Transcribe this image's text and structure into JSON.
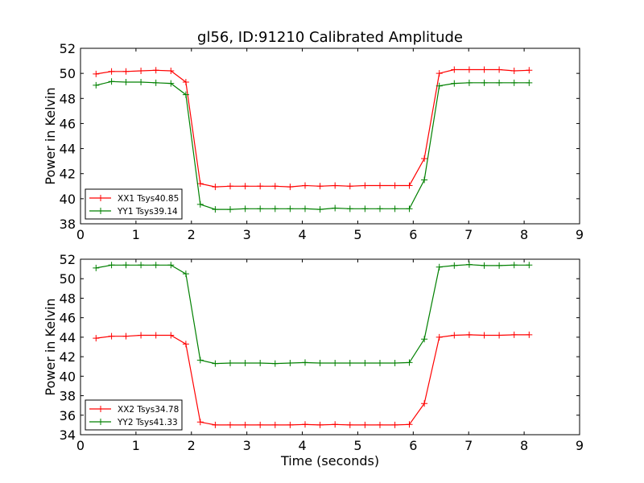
{
  "figure": {
    "title": "gl56, ID:91210 Calibrated Amplitude"
  },
  "chart_data": [
    {
      "type": "line",
      "ylabel": "Power in Kelvin",
      "xlabel": "",
      "xlim": [
        0,
        9
      ],
      "ylim": [
        38,
        52
      ],
      "xticks": [
        0,
        1,
        2,
        3,
        4,
        5,
        6,
        7,
        8,
        9
      ],
      "yticks": [
        38,
        40,
        42,
        44,
        46,
        48,
        50,
        52
      ],
      "legend_position": "lower-left",
      "grid": false,
      "x": [
        0.28,
        0.56,
        0.82,
        1.09,
        1.36,
        1.63,
        1.9,
        2.16,
        2.43,
        2.7,
        2.97,
        3.24,
        3.51,
        3.78,
        4.05,
        4.32,
        4.59,
        4.86,
        5.13,
        5.4,
        5.67,
        5.93,
        6.2,
        6.47,
        6.74,
        7.01,
        7.28,
        7.55,
        7.82,
        8.09
      ],
      "series": [
        {
          "name": "XX1 Tsys40.85",
          "color": "#ff0000",
          "values": [
            49.95,
            50.15,
            50.15,
            50.2,
            50.25,
            50.2,
            49.3,
            41.2,
            40.95,
            41.0,
            41.0,
            41.0,
            41.0,
            40.95,
            41.05,
            41.0,
            41.05,
            41.0,
            41.05,
            41.05,
            41.05,
            41.05,
            43.2,
            50.0,
            50.3,
            50.3,
            50.3,
            50.3,
            50.2,
            50.25
          ]
        },
        {
          "name": "YY1 Tsys39.14",
          "color": "#008000",
          "values": [
            49.05,
            49.35,
            49.3,
            49.3,
            49.25,
            49.2,
            48.3,
            39.55,
            39.15,
            39.15,
            39.2,
            39.2,
            39.2,
            39.2,
            39.2,
            39.15,
            39.25,
            39.2,
            39.2,
            39.2,
            39.2,
            39.2,
            41.5,
            49.0,
            49.2,
            49.25,
            49.25,
            49.25,
            49.25,
            49.25
          ]
        }
      ]
    },
    {
      "type": "line",
      "ylabel": "Power in Kelvin",
      "xlabel": "Time (seconds)",
      "xlim": [
        0,
        9
      ],
      "ylim": [
        34,
        52
      ],
      "xticks": [
        0,
        1,
        2,
        3,
        4,
        5,
        6,
        7,
        8,
        9
      ],
      "yticks": [
        34,
        36,
        38,
        40,
        42,
        44,
        46,
        48,
        50,
        52
      ],
      "legend_position": "lower-left",
      "grid": false,
      "x": [
        0.28,
        0.56,
        0.82,
        1.09,
        1.36,
        1.63,
        1.9,
        2.16,
        2.43,
        2.7,
        2.97,
        3.24,
        3.51,
        3.78,
        4.05,
        4.32,
        4.59,
        4.86,
        5.13,
        5.4,
        5.67,
        5.93,
        6.2,
        6.47,
        6.74,
        7.01,
        7.28,
        7.55,
        7.82,
        8.09
      ],
      "series": [
        {
          "name": "XX2 Tsys34.78",
          "color": "#ff0000",
          "values": [
            43.9,
            44.1,
            44.1,
            44.2,
            44.2,
            44.2,
            43.3,
            35.3,
            35.0,
            35.0,
            35.0,
            35.0,
            35.0,
            35.0,
            35.05,
            35.0,
            35.05,
            35.0,
            35.0,
            35.0,
            35.0,
            35.05,
            37.2,
            44.0,
            44.2,
            44.25,
            44.2,
            44.2,
            44.25,
            44.25
          ]
        },
        {
          "name": "YY2 Tsys41.33",
          "color": "#008000",
          "values": [
            51.1,
            51.4,
            51.4,
            51.4,
            51.4,
            51.4,
            50.5,
            41.65,
            41.3,
            41.35,
            41.35,
            41.35,
            41.3,
            41.35,
            41.4,
            41.35,
            41.35,
            41.35,
            41.35,
            41.35,
            41.35,
            41.4,
            43.8,
            51.2,
            51.35,
            51.45,
            51.35,
            51.35,
            51.4,
            51.4
          ]
        }
      ]
    }
  ]
}
